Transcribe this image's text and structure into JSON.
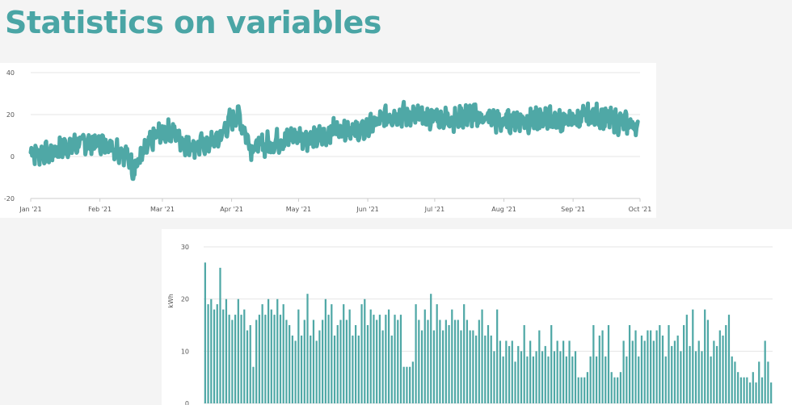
{
  "page": {
    "title": "Statistics on variables"
  },
  "colors": {
    "series": "#4fa8a6",
    "grid": "#e6e6e6",
    "axis": "#cccccc",
    "title": "#4aa5a5"
  },
  "chart_data": [
    {
      "type": "line",
      "title": "",
      "xlabel": "",
      "ylabel": "",
      "x_ticks": [
        "Jan '21",
        "Feb '21",
        "Mar '21",
        "Apr '21",
        "May '21",
        "Jun '21",
        "Jul '21",
        "Aug '21",
        "Sep '21",
        "Oct '21"
      ],
      "y_ticks": [
        -20,
        0,
        20,
        40
      ],
      "ylim": [
        -20,
        40
      ],
      "xlim": [
        "2021-01-01",
        "2021-10-01"
      ],
      "grid": true,
      "series": [
        {
          "values_sampled": [
            [
              "2021-01-01",
              2
            ],
            [
              "2021-01-08",
              1
            ],
            [
              "2021-01-15",
              4
            ],
            [
              "2021-01-22",
              6
            ],
            [
              "2021-01-29",
              7
            ],
            [
              "2021-02-05",
              6
            ],
            [
              "2021-02-12",
              2
            ],
            [
              "2021-02-16",
              -6
            ],
            [
              "2021-02-20",
              0
            ],
            [
              "2021-02-26",
              10
            ],
            [
              "2021-03-05",
              12
            ],
            [
              "2021-03-12",
              6
            ],
            [
              "2021-03-19",
              5
            ],
            [
              "2021-03-26",
              8
            ],
            [
              "2021-04-01",
              18
            ],
            [
              "2021-04-04",
              20
            ],
            [
              "2021-04-10",
              4
            ],
            [
              "2021-04-17",
              6
            ],
            [
              "2021-04-24",
              8
            ],
            [
              "2021-05-01",
              10
            ],
            [
              "2021-05-08",
              8
            ],
            [
              "2021-05-15",
              12
            ],
            [
              "2021-05-22",
              14
            ],
            [
              "2021-05-29",
              12
            ],
            [
              "2021-06-05",
              16
            ],
            [
              "2021-06-12",
              20
            ],
            [
              "2021-06-19",
              20
            ],
            [
              "2021-06-26",
              18
            ],
            [
              "2021-07-03",
              19
            ],
            [
              "2021-07-10",
              18
            ],
            [
              "2021-07-17",
              20
            ],
            [
              "2021-07-24",
              18
            ],
            [
              "2021-07-31",
              16
            ],
            [
              "2021-08-07",
              18
            ],
            [
              "2021-08-14",
              17
            ],
            [
              "2021-08-21",
              18
            ],
            [
              "2021-08-28",
              17
            ],
            [
              "2021-09-04",
              18
            ],
            [
              "2021-09-11",
              20
            ],
            [
              "2021-09-18",
              17
            ],
            [
              "2021-09-25",
              16
            ],
            [
              "2021-09-30",
              14
            ]
          ]
        }
      ]
    },
    {
      "type": "bar",
      "title": "",
      "xlabel": "",
      "ylabel": "kWh",
      "y_ticks": [
        0,
        10,
        20,
        30
      ],
      "ylim": [
        0,
        30
      ],
      "grid": true,
      "bar_count": 189,
      "values": [
        27,
        19,
        20,
        18,
        19,
        26,
        18,
        20,
        17,
        16,
        17,
        20,
        17,
        18,
        14,
        15,
        7,
        16,
        17,
        19,
        17,
        20,
        18,
        17,
        20,
        17,
        19,
        16,
        15,
        13,
        12,
        18,
        13,
        16,
        21,
        13,
        16,
        12,
        14,
        16,
        20,
        17,
        19,
        13,
        15,
        16,
        19,
        16,
        18,
        13,
        15,
        13,
        19,
        20,
        15,
        18,
        17,
        16,
        17,
        14,
        17,
        18,
        13,
        17,
        16,
        17,
        7,
        7,
        7,
        8,
        19,
        16,
        14,
        18,
        16,
        21,
        14,
        19,
        16,
        14,
        16,
        15,
        18,
        16,
        16,
        14,
        19,
        16,
        14,
        14,
        13,
        16,
        18,
        13,
        15,
        13,
        10,
        18,
        12,
        9,
        12,
        11,
        12,
        8,
        11,
        10,
        15,
        9,
        12,
        9,
        10,
        14,
        10,
        11,
        9,
        15,
        10,
        12,
        10,
        12,
        9,
        12,
        9,
        10,
        5,
        5,
        5,
        6,
        9,
        15,
        9,
        13,
        14,
        9,
        15,
        6,
        5,
        5,
        6,
        12,
        9,
        15,
        12,
        14,
        9,
        13,
        12,
        14,
        14,
        12,
        14,
        15,
        13,
        9,
        15,
        11,
        12,
        13,
        10,
        15,
        17,
        11,
        18,
        10,
        12,
        10,
        18,
        16,
        9,
        12,
        11,
        14,
        13,
        15,
        17,
        9,
        8,
        6,
        5,
        5,
        5,
        4,
        6,
        4,
        8,
        5,
        12,
        8,
        4
      ]
    }
  ]
}
